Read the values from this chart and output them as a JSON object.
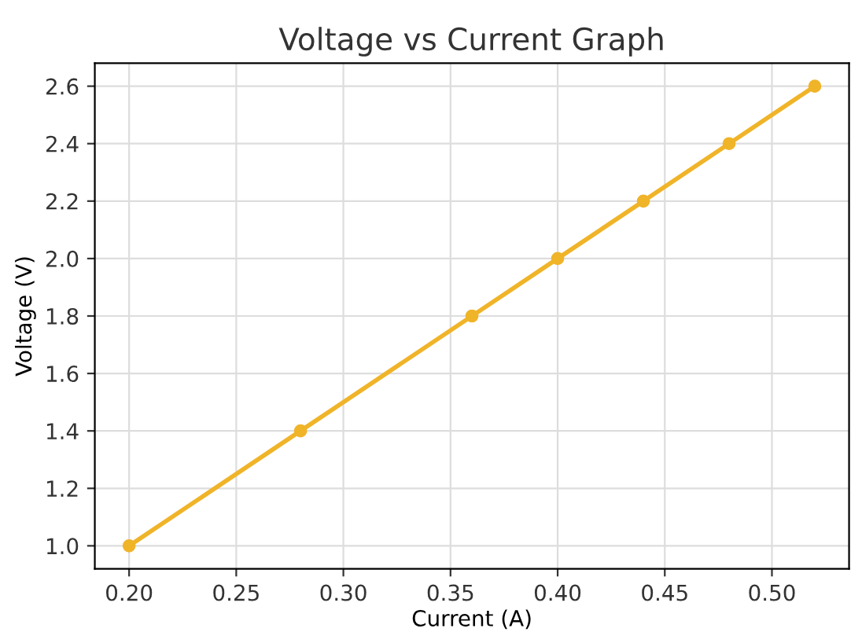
{
  "chart_data": {
    "type": "line",
    "title": "Voltage vs Current Graph",
    "xlabel": "Current (A)",
    "ylabel": "Voltage (V)",
    "x": [
      0.2,
      0.28,
      0.36,
      0.4,
      0.44,
      0.48,
      0.52
    ],
    "series": [
      {
        "color": "#f0b429",
        "values": [
          1.0,
          1.4,
          1.8,
          2.0,
          2.2,
          2.4,
          2.6
        ]
      }
    ],
    "xlim": [
      0.184,
      0.536
    ],
    "ylim": [
      0.92,
      2.68
    ],
    "xticks": [
      {
        "value": 0.2,
        "label": "0.20"
      },
      {
        "value": 0.25,
        "label": "0.25"
      },
      {
        "value": 0.3,
        "label": "0.30"
      },
      {
        "value": 0.35,
        "label": "0.35"
      },
      {
        "value": 0.4,
        "label": "0.40"
      },
      {
        "value": 0.45,
        "label": "0.45"
      },
      {
        "value": 0.5,
        "label": "0.50"
      }
    ],
    "yticks": [
      {
        "value": 1.0,
        "label": "1.0"
      },
      {
        "value": 1.2,
        "label": "1.2"
      },
      {
        "value": 1.4,
        "label": "1.4"
      },
      {
        "value": 1.6,
        "label": "1.6"
      },
      {
        "value": 1.8,
        "label": "1.8"
      },
      {
        "value": 2.0,
        "label": "2.0"
      },
      {
        "value": 2.2,
        "label": "2.2"
      },
      {
        "value": 2.4,
        "label": "2.4"
      },
      {
        "value": 2.6,
        "label": "2.6"
      }
    ],
    "grid": true,
    "marker": "circle",
    "line_style": "solid"
  }
}
